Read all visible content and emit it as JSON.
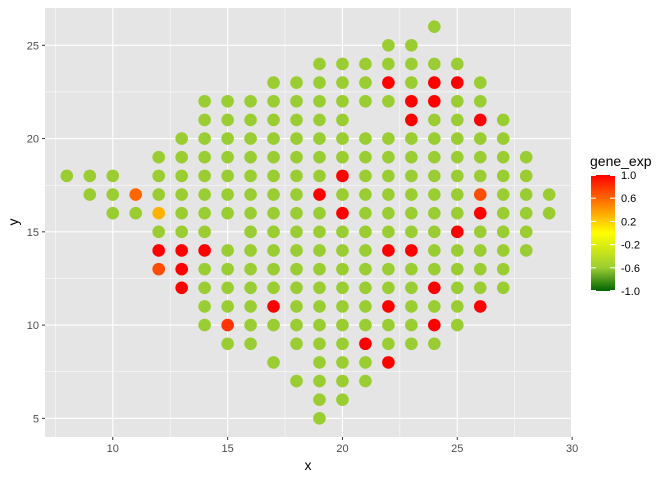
{
  "chart_data": {
    "type": "scatter",
    "title": "",
    "xlabel": "x",
    "ylabel": "y",
    "xlim": [
      7.05,
      29.95
    ],
    "ylim": [
      4.0,
      27.0
    ],
    "xticks": [
      10,
      15,
      20,
      25,
      30
    ],
    "yticks": [
      5,
      10,
      15,
      20,
      25
    ],
    "xtick_labels": [
      "10",
      "15",
      "20",
      "25",
      "30"
    ],
    "ytick_labels": [
      "5",
      "10",
      "15",
      "20",
      "25"
    ],
    "grid": true,
    "panel_background": "#e5e5e5",
    "legend": {
      "title": "gene_exp",
      "position": "right",
      "type": "colorbar",
      "range": [
        -1.0,
        1.0
      ],
      "breaks": [
        1.0,
        0.6,
        0.2,
        -0.2,
        -0.6,
        -1.0
      ],
      "break_labels": [
        "1.0",
        "0.6",
        "0.2",
        "-0.2",
        "-0.6",
        "-1.0"
      ],
      "colors": [
        {
          "value": -1.0,
          "color": "#006400"
        },
        {
          "value": -0.6,
          "color": "#9acd32"
        },
        {
          "value": 0.0,
          "color": "#ffff00"
        },
        {
          "value": 1.0,
          "color": "#ff0000"
        }
      ]
    },
    "points": [
      {
        "x": 8,
        "y": 18,
        "v": -0.6
      },
      {
        "x": 9,
        "y": 18,
        "v": -0.6
      },
      {
        "x": 9,
        "y": 17,
        "v": -0.6
      },
      {
        "x": 10,
        "y": 18,
        "v": -0.6
      },
      {
        "x": 10,
        "y": 17,
        "v": -0.6
      },
      {
        "x": 10,
        "y": 16,
        "v": -0.6
      },
      {
        "x": 11,
        "y": 17,
        "v": 0.6
      },
      {
        "x": 11,
        "y": 16,
        "v": -0.6
      },
      {
        "x": 12,
        "y": 19,
        "v": -0.6
      },
      {
        "x": 12,
        "y": 18,
        "v": -0.6
      },
      {
        "x": 12,
        "y": 17,
        "v": -0.6
      },
      {
        "x": 12,
        "y": 16,
        "v": 0.3
      },
      {
        "x": 12,
        "y": 15,
        "v": -0.6
      },
      {
        "x": 12,
        "y": 14,
        "v": 1.0
      },
      {
        "x": 12,
        "y": 13,
        "v": 0.7
      },
      {
        "x": 13,
        "y": 20,
        "v": -0.6
      },
      {
        "x": 13,
        "y": 19,
        "v": -0.6
      },
      {
        "x": 13,
        "y": 18,
        "v": -0.6
      },
      {
        "x": 13,
        "y": 17,
        "v": -0.6
      },
      {
        "x": 13,
        "y": 16,
        "v": -0.6
      },
      {
        "x": 13,
        "y": 15,
        "v": -0.6
      },
      {
        "x": 13,
        "y": 14,
        "v": 1.0
      },
      {
        "x": 13,
        "y": 13,
        "v": 1.0
      },
      {
        "x": 13,
        "y": 12,
        "v": 1.0
      },
      {
        "x": 14,
        "y": 22,
        "v": -0.6
      },
      {
        "x": 14,
        "y": 21,
        "v": -0.6
      },
      {
        "x": 14,
        "y": 20,
        "v": -0.6
      },
      {
        "x": 14,
        "y": 19,
        "v": -0.6
      },
      {
        "x": 14,
        "y": 18,
        "v": -0.6
      },
      {
        "x": 14,
        "y": 17,
        "v": -0.6
      },
      {
        "x": 14,
        "y": 16,
        "v": -0.6
      },
      {
        "x": 14,
        "y": 15,
        "v": -0.6
      },
      {
        "x": 14,
        "y": 14,
        "v": 1.0
      },
      {
        "x": 14,
        "y": 13,
        "v": -0.6
      },
      {
        "x": 14,
        "y": 12,
        "v": -0.6
      },
      {
        "x": 14,
        "y": 11,
        "v": -0.6
      },
      {
        "x": 14,
        "y": 10,
        "v": -0.6
      },
      {
        "x": 15,
        "y": 22,
        "v": -0.6
      },
      {
        "x": 15,
        "y": 21,
        "v": -0.6
      },
      {
        "x": 15,
        "y": 20,
        "v": -0.6
      },
      {
        "x": 15,
        "y": 19,
        "v": -0.6
      },
      {
        "x": 15,
        "y": 18,
        "v": -0.6
      },
      {
        "x": 15,
        "y": 17,
        "v": -0.6
      },
      {
        "x": 15,
        "y": 16,
        "v": -0.6
      },
      {
        "x": 15,
        "y": 14,
        "v": -0.6
      },
      {
        "x": 15,
        "y": 13,
        "v": -0.6
      },
      {
        "x": 15,
        "y": 12,
        "v": -0.6
      },
      {
        "x": 15,
        "y": 11,
        "v": -0.6
      },
      {
        "x": 15,
        "y": 10,
        "v": 0.8
      },
      {
        "x": 15,
        "y": 9,
        "v": -0.6
      },
      {
        "x": 16,
        "y": 22,
        "v": -0.6
      },
      {
        "x": 16,
        "y": 21,
        "v": -0.6
      },
      {
        "x": 16,
        "y": 20,
        "v": -0.6
      },
      {
        "x": 16,
        "y": 19,
        "v": -0.6
      },
      {
        "x": 16,
        "y": 18,
        "v": -0.6
      },
      {
        "x": 16,
        "y": 17,
        "v": -0.6
      },
      {
        "x": 16,
        "y": 16,
        "v": -0.6
      },
      {
        "x": 16,
        "y": 15,
        "v": -0.6
      },
      {
        "x": 16,
        "y": 14,
        "v": -0.6
      },
      {
        "x": 16,
        "y": 13,
        "v": -0.6
      },
      {
        "x": 16,
        "y": 12,
        "v": -0.6
      },
      {
        "x": 16,
        "y": 11,
        "v": -0.6
      },
      {
        "x": 16,
        "y": 10,
        "v": -0.6
      },
      {
        "x": 16,
        "y": 9,
        "v": -0.6
      },
      {
        "x": 17,
        "y": 23,
        "v": -0.6
      },
      {
        "x": 17,
        "y": 22,
        "v": -0.6
      },
      {
        "x": 17,
        "y": 21,
        "v": -0.6
      },
      {
        "x": 17,
        "y": 20,
        "v": -0.6
      },
      {
        "x": 17,
        "y": 19,
        "v": -0.6
      },
      {
        "x": 17,
        "y": 18,
        "v": -0.6
      },
      {
        "x": 17,
        "y": 17,
        "v": -0.6
      },
      {
        "x": 17,
        "y": 16,
        "v": -0.6
      },
      {
        "x": 17,
        "y": 15,
        "v": -0.6
      },
      {
        "x": 17,
        "y": 14,
        "v": -0.6
      },
      {
        "x": 17,
        "y": 13,
        "v": -0.6
      },
      {
        "x": 17,
        "y": 12,
        "v": -0.6
      },
      {
        "x": 17,
        "y": 11,
        "v": 1.0
      },
      {
        "x": 17,
        "y": 10,
        "v": -0.6
      },
      {
        "x": 17,
        "y": 8,
        "v": -0.6
      },
      {
        "x": 18,
        "y": 23,
        "v": -0.6
      },
      {
        "x": 18,
        "y": 22,
        "v": -0.6
      },
      {
        "x": 18,
        "y": 21,
        "v": -0.6
      },
      {
        "x": 18,
        "y": 20,
        "v": -0.6
      },
      {
        "x": 18,
        "y": 19,
        "v": -0.6
      },
      {
        "x": 18,
        "y": 18,
        "v": -0.6
      },
      {
        "x": 18,
        "y": 17,
        "v": -0.6
      },
      {
        "x": 18,
        "y": 16,
        "v": -0.6
      },
      {
        "x": 18,
        "y": 15,
        "v": -0.6
      },
      {
        "x": 18,
        "y": 14,
        "v": -0.6
      },
      {
        "x": 18,
        "y": 13,
        "v": -0.6
      },
      {
        "x": 18,
        "y": 12,
        "v": -0.6
      },
      {
        "x": 18,
        "y": 11,
        "v": -0.6
      },
      {
        "x": 18,
        "y": 10,
        "v": -0.6
      },
      {
        "x": 18,
        "y": 9,
        "v": -0.6
      },
      {
        "x": 18,
        "y": 7,
        "v": -0.6
      },
      {
        "x": 19,
        "y": 24,
        "v": -0.6
      },
      {
        "x": 19,
        "y": 23,
        "v": -0.6
      },
      {
        "x": 19,
        "y": 22,
        "v": -0.6
      },
      {
        "x": 19,
        "y": 21,
        "v": -0.6
      },
      {
        "x": 19,
        "y": 20,
        "v": -0.6
      },
      {
        "x": 19,
        "y": 19,
        "v": -0.6
      },
      {
        "x": 19,
        "y": 18,
        "v": -0.6
      },
      {
        "x": 19,
        "y": 17,
        "v": 1.0
      },
      {
        "x": 19,
        "y": 16,
        "v": -0.6
      },
      {
        "x": 19,
        "y": 15,
        "v": -0.6
      },
      {
        "x": 19,
        "y": 14,
        "v": -0.6
      },
      {
        "x": 19,
        "y": 13,
        "v": -0.6
      },
      {
        "x": 19,
        "y": 12,
        "v": -0.6
      },
      {
        "x": 19,
        "y": 11,
        "v": -0.6
      },
      {
        "x": 19,
        "y": 10,
        "v": -0.6
      },
      {
        "x": 19,
        "y": 9,
        "v": -0.6
      },
      {
        "x": 19,
        "y": 8,
        "v": -0.6
      },
      {
        "x": 19,
        "y": 7,
        "v": -0.6
      },
      {
        "x": 19,
        "y": 6,
        "v": -0.6
      },
      {
        "x": 19,
        "y": 5,
        "v": -0.6
      },
      {
        "x": 20,
        "y": 24,
        "v": -0.6
      },
      {
        "x": 20,
        "y": 23,
        "v": -0.6
      },
      {
        "x": 20,
        "y": 22,
        "v": -0.6
      },
      {
        "x": 20,
        "y": 21,
        "v": -0.6
      },
      {
        "x": 20,
        "y": 20,
        "v": -0.6
      },
      {
        "x": 20,
        "y": 19,
        "v": -0.6
      },
      {
        "x": 20,
        "y": 18,
        "v": 1.0
      },
      {
        "x": 20,
        "y": 17,
        "v": -0.6
      },
      {
        "x": 20,
        "y": 16,
        "v": 1.0
      },
      {
        "x": 20,
        "y": 15,
        "v": -0.6
      },
      {
        "x": 20,
        "y": 14,
        "v": -0.6
      },
      {
        "x": 20,
        "y": 13,
        "v": -0.6
      },
      {
        "x": 20,
        "y": 12,
        "v": -0.6
      },
      {
        "x": 20,
        "y": 11,
        "v": -0.6
      },
      {
        "x": 20,
        "y": 10,
        "v": -0.6
      },
      {
        "x": 20,
        "y": 9,
        "v": -0.6
      },
      {
        "x": 20,
        "y": 8,
        "v": -0.6
      },
      {
        "x": 20,
        "y": 7,
        "v": -0.6
      },
      {
        "x": 20,
        "y": 6,
        "v": -0.6
      },
      {
        "x": 21,
        "y": 24,
        "v": -0.6
      },
      {
        "x": 21,
        "y": 23,
        "v": -0.6
      },
      {
        "x": 21,
        "y": 22,
        "v": -0.6
      },
      {
        "x": 21,
        "y": 20,
        "v": -0.6
      },
      {
        "x": 21,
        "y": 19,
        "v": -0.6
      },
      {
        "x": 21,
        "y": 18,
        "v": -0.6
      },
      {
        "x": 21,
        "y": 17,
        "v": -0.6
      },
      {
        "x": 21,
        "y": 16,
        "v": -0.6
      },
      {
        "x": 21,
        "y": 15,
        "v": -0.6
      },
      {
        "x": 21,
        "y": 14,
        "v": -0.6
      },
      {
        "x": 21,
        "y": 13,
        "v": -0.6
      },
      {
        "x": 21,
        "y": 12,
        "v": -0.6
      },
      {
        "x": 21,
        "y": 11,
        "v": -0.6
      },
      {
        "x": 21,
        "y": 10,
        "v": -0.6
      },
      {
        "x": 21,
        "y": 9,
        "v": 1.0
      },
      {
        "x": 21,
        "y": 8,
        "v": -0.6
      },
      {
        "x": 21,
        "y": 7,
        "v": -0.6
      },
      {
        "x": 22,
        "y": 25,
        "v": -0.6
      },
      {
        "x": 22,
        "y": 24,
        "v": -0.6
      },
      {
        "x": 22,
        "y": 23,
        "v": 1.0
      },
      {
        "x": 22,
        "y": 22,
        "v": -0.6
      },
      {
        "x": 22,
        "y": 20,
        "v": -0.6
      },
      {
        "x": 22,
        "y": 19,
        "v": -0.6
      },
      {
        "x": 22,
        "y": 18,
        "v": -0.6
      },
      {
        "x": 22,
        "y": 17,
        "v": -0.6
      },
      {
        "x": 22,
        "y": 16,
        "v": -0.6
      },
      {
        "x": 22,
        "y": 15,
        "v": -0.6
      },
      {
        "x": 22,
        "y": 14,
        "v": 1.0
      },
      {
        "x": 22,
        "y": 13,
        "v": -0.6
      },
      {
        "x": 22,
        "y": 12,
        "v": -0.6
      },
      {
        "x": 22,
        "y": 11,
        "v": 1.0
      },
      {
        "x": 22,
        "y": 10,
        "v": -0.6
      },
      {
        "x": 22,
        "y": 9,
        "v": -0.6
      },
      {
        "x": 22,
        "y": 8,
        "v": 1.0
      },
      {
        "x": 23,
        "y": 25,
        "v": -0.6
      },
      {
        "x": 23,
        "y": 24,
        "v": -0.6
      },
      {
        "x": 23,
        "y": 23,
        "v": -0.6
      },
      {
        "x": 23,
        "y": 22,
        "v": 1.0
      },
      {
        "x": 23,
        "y": 21,
        "v": 1.0
      },
      {
        "x": 23,
        "y": 20,
        "v": -0.6
      },
      {
        "x": 23,
        "y": 19,
        "v": -0.6
      },
      {
        "x": 23,
        "y": 18,
        "v": -0.6
      },
      {
        "x": 23,
        "y": 17,
        "v": -0.6
      },
      {
        "x": 23,
        "y": 16,
        "v": -0.6
      },
      {
        "x": 23,
        "y": 15,
        "v": -0.6
      },
      {
        "x": 23,
        "y": 14,
        "v": 1.0
      },
      {
        "x": 23,
        "y": 13,
        "v": -0.6
      },
      {
        "x": 23,
        "y": 12,
        "v": -0.6
      },
      {
        "x": 23,
        "y": 11,
        "v": -0.6
      },
      {
        "x": 23,
        "y": 10,
        "v": -0.6
      },
      {
        "x": 23,
        "y": 9,
        "v": -0.6
      },
      {
        "x": 24,
        "y": 26,
        "v": -0.6
      },
      {
        "x": 24,
        "y": 24,
        "v": -0.6
      },
      {
        "x": 24,
        "y": 23,
        "v": 1.0
      },
      {
        "x": 24,
        "y": 22,
        "v": 1.0
      },
      {
        "x": 24,
        "y": 21,
        "v": -0.6
      },
      {
        "x": 24,
        "y": 20,
        "v": -0.6
      },
      {
        "x": 24,
        "y": 19,
        "v": -0.6
      },
      {
        "x": 24,
        "y": 18,
        "v": -0.6
      },
      {
        "x": 24,
        "y": 17,
        "v": -0.6
      },
      {
        "x": 24,
        "y": 16,
        "v": -0.6
      },
      {
        "x": 24,
        "y": 15,
        "v": -0.6
      },
      {
        "x": 24,
        "y": 14,
        "v": -0.6
      },
      {
        "x": 24,
        "y": 13,
        "v": -0.6
      },
      {
        "x": 24,
        "y": 12,
        "v": 1.0
      },
      {
        "x": 24,
        "y": 11,
        "v": -0.6
      },
      {
        "x": 24,
        "y": 10,
        "v": 1.0
      },
      {
        "x": 24,
        "y": 9,
        "v": -0.6
      },
      {
        "x": 25,
        "y": 24,
        "v": -0.6
      },
      {
        "x": 25,
        "y": 23,
        "v": 1.0
      },
      {
        "x": 25,
        "y": 22,
        "v": -0.6
      },
      {
        "x": 25,
        "y": 21,
        "v": -0.6
      },
      {
        "x": 25,
        "y": 20,
        "v": -0.6
      },
      {
        "x": 25,
        "y": 19,
        "v": -0.6
      },
      {
        "x": 25,
        "y": 18,
        "v": -0.6
      },
      {
        "x": 25,
        "y": 17,
        "v": -0.6
      },
      {
        "x": 25,
        "y": 16,
        "v": -0.6
      },
      {
        "x": 25,
        "y": 15,
        "v": 1.0
      },
      {
        "x": 25,
        "y": 14,
        "v": -0.6
      },
      {
        "x": 25,
        "y": 13,
        "v": -0.6
      },
      {
        "x": 25,
        "y": 12,
        "v": -0.6
      },
      {
        "x": 25,
        "y": 11,
        "v": -0.6
      },
      {
        "x": 25,
        "y": 10,
        "v": -0.6
      },
      {
        "x": 26,
        "y": 23,
        "v": -0.6
      },
      {
        "x": 26,
        "y": 22,
        "v": -0.6
      },
      {
        "x": 26,
        "y": 21,
        "v": 1.0
      },
      {
        "x": 26,
        "y": 20,
        "v": -0.6
      },
      {
        "x": 26,
        "y": 19,
        "v": -0.6
      },
      {
        "x": 26,
        "y": 18,
        "v": -0.6
      },
      {
        "x": 26,
        "y": 17,
        "v": 0.7
      },
      {
        "x": 26,
        "y": 16,
        "v": 1.0
      },
      {
        "x": 26,
        "y": 15,
        "v": -0.6
      },
      {
        "x": 26,
        "y": 14,
        "v": -0.6
      },
      {
        "x": 26,
        "y": 13,
        "v": -0.6
      },
      {
        "x": 26,
        "y": 12,
        "v": -0.6
      },
      {
        "x": 26,
        "y": 11,
        "v": 1.0
      },
      {
        "x": 27,
        "y": 21,
        "v": -0.6
      },
      {
        "x": 27,
        "y": 20,
        "v": -0.6
      },
      {
        "x": 27,
        "y": 19,
        "v": -0.6
      },
      {
        "x": 27,
        "y": 18,
        "v": -0.6
      },
      {
        "x": 27,
        "y": 17,
        "v": -0.6
      },
      {
        "x": 27,
        "y": 16,
        "v": -0.6
      },
      {
        "x": 27,
        "y": 15,
        "v": -0.6
      },
      {
        "x": 27,
        "y": 14,
        "v": -0.6
      },
      {
        "x": 27,
        "y": 13,
        "v": -0.6
      },
      {
        "x": 27,
        "y": 12,
        "v": -0.6
      },
      {
        "x": 28,
        "y": 19,
        "v": -0.6
      },
      {
        "x": 28,
        "y": 18,
        "v": -0.6
      },
      {
        "x": 28,
        "y": 17,
        "v": -0.6
      },
      {
        "x": 28,
        "y": 16,
        "v": -0.6
      },
      {
        "x": 28,
        "y": 15,
        "v": -0.6
      },
      {
        "x": 28,
        "y": 14,
        "v": -0.6
      },
      {
        "x": 29,
        "y": 17,
        "v": -0.6
      },
      {
        "x": 29,
        "y": 16,
        "v": -0.6
      }
    ]
  }
}
